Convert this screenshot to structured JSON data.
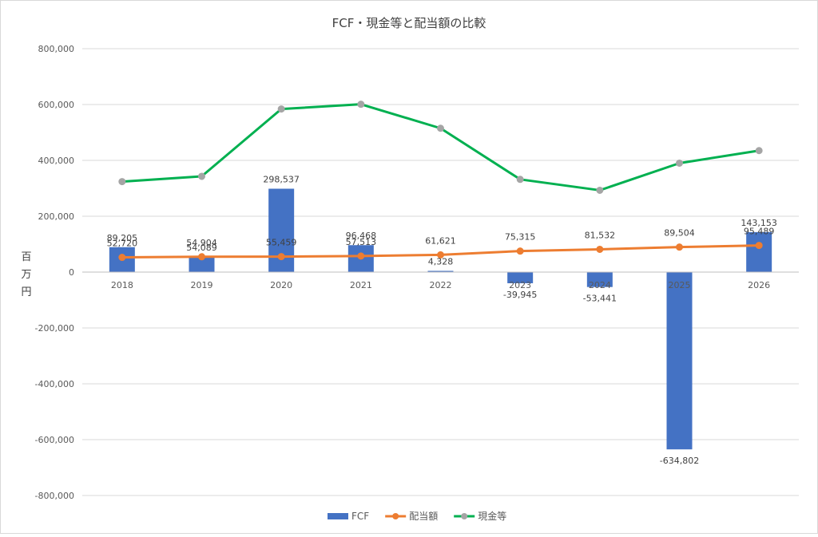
{
  "chart_data": {
    "type": "bar",
    "title": "FCF・現金等と配当額の比較",
    "ylabel": "百万円",
    "ylim": [
      -800000,
      800000
    ],
    "yticks": [
      800000,
      600000,
      400000,
      200000,
      0,
      -200000,
      -400000,
      -600000,
      -800000
    ],
    "ytick_labels": [
      "800,000",
      "600,000",
      "400,000",
      "200,000",
      "0",
      "-200,000",
      "-400,000",
      "-600,000",
      "-800,000"
    ],
    "grid": true,
    "legend_position": "bottom",
    "categories": [
      "2018",
      "2019",
      "2020",
      "2021",
      "2022",
      "2023",
      "2024",
      "2025",
      "2026"
    ],
    "series": [
      {
        "name": "FCF",
        "kind": "bar",
        "color": "#4472C4",
        "values": [
          89205,
          54089,
          298537,
          96468,
          4328,
          -39945,
          -53441,
          -634802,
          143153
        ],
        "labels": [
          "89,205",
          "54,089",
          "298,537",
          "96,468",
          "4,328",
          "-39,945",
          "-53,441",
          "-634,802",
          "143,153"
        ]
      },
      {
        "name": "配当額",
        "kind": "line",
        "color": "#ED7D31",
        "values": [
          52720,
          54904,
          55459,
          57513,
          61621,
          75315,
          81532,
          89504,
          95489
        ],
        "labels": [
          "52,720",
          "54,904",
          "55,459",
          "57,513",
          "61,621",
          "75,315",
          "81,532",
          "89,504",
          "95,489"
        ]
      },
      {
        "name": "現金等",
        "kind": "line",
        "color": "#00B050",
        "marker_color": "#A5A5A5",
        "values": [
          324000,
          343000,
          584000,
          601000,
          515000,
          332000,
          293000,
          390000,
          435000
        ]
      }
    ]
  }
}
